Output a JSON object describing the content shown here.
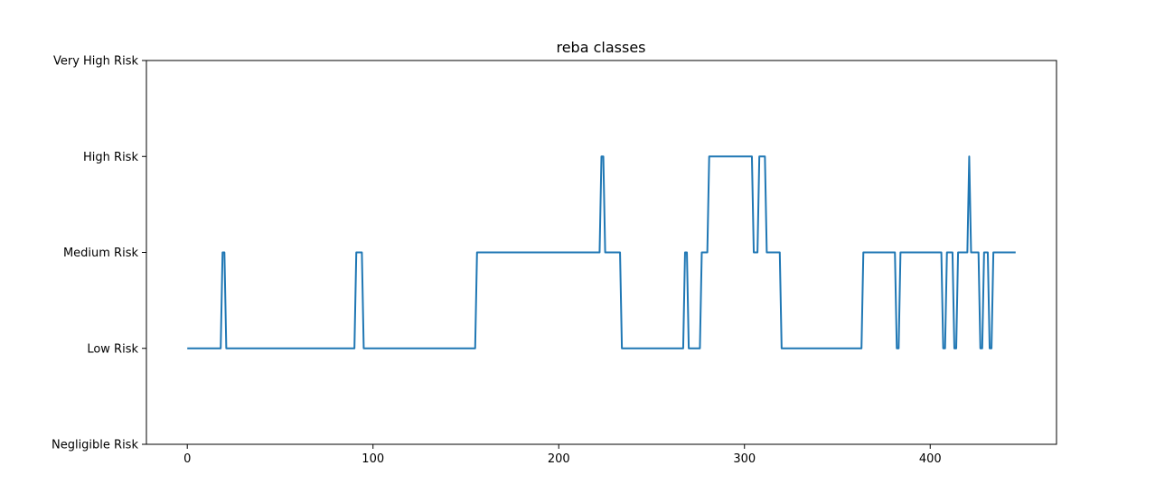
{
  "chart_data": {
    "type": "line",
    "title": "reba classes",
    "xlabel": "",
    "ylabel": "",
    "xlim": [
      -22,
      468
    ],
    "ylim": [
      0,
      4
    ],
    "x_ticks": [
      0,
      100,
      200,
      300,
      400
    ],
    "y_ticks": [
      {
        "value": 0,
        "label": "Negligible Risk"
      },
      {
        "value": 1,
        "label": "Low Risk"
      },
      {
        "value": 2,
        "label": "Medium Risk"
      },
      {
        "value": 3,
        "label": "High Risk"
      },
      {
        "value": 4,
        "label": "Very High Risk"
      }
    ],
    "grid": false,
    "line_color": "#1f77b4",
    "series": [
      {
        "x": [
          0,
          18,
          19,
          20,
          21,
          90,
          91,
          94,
          95,
          155,
          156,
          222,
          223,
          224,
          225,
          233,
          234,
          267,
          268,
          269,
          270,
          276,
          277,
          280,
          281,
          304,
          305,
          307,
          308,
          311,
          312,
          319,
          320,
          363,
          364,
          381,
          382,
          383,
          384,
          406,
          407,
          408,
          409,
          412,
          413,
          414,
          415,
          420,
          421,
          422,
          423,
          426,
          427,
          428,
          429,
          431,
          432,
          433,
          434,
          446
        ],
        "y": [
          1,
          1,
          2,
          2,
          1,
          1,
          2,
          2,
          1,
          1,
          2,
          2,
          3,
          3,
          2,
          2,
          1,
          1,
          2,
          2,
          1,
          1,
          2,
          2,
          3,
          3,
          2,
          2,
          3,
          3,
          2,
          2,
          1,
          1,
          2,
          2,
          1,
          1,
          2,
          2,
          1,
          1,
          2,
          2,
          1,
          1,
          2,
          2,
          3,
          2,
          2,
          2,
          1,
          1,
          2,
          2,
          1,
          1,
          2,
          2
        ]
      }
    ]
  }
}
